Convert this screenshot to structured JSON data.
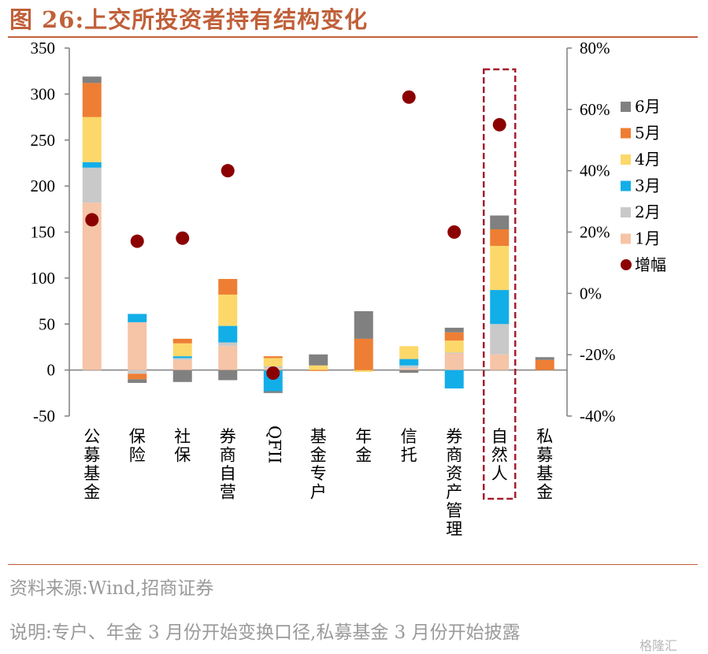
{
  "title": "图 26:上交所投资者持有结构变化",
  "source": "资料来源:Wind,招商证券",
  "note": "说明:专户、年金 3 月份开始变换口径,私募基金 3 月份开始披露",
  "watermark": "格隆汇",
  "highlight_color": "#a31f2f",
  "chart_data": {
    "type": "bar",
    "stacked": true,
    "categories": [
      "公募基金",
      "保险",
      "社保",
      "券商自营",
      "QFII",
      "基金专户",
      "年金",
      "信托",
      "券商资产管理",
      "自然人",
      "私募基金"
    ],
    "ylim": [
      -50,
      350
    ],
    "yticks": [
      -50,
      0,
      50,
      100,
      150,
      200,
      250,
      300,
      350
    ],
    "y2lim": [
      -0.4,
      0.8
    ],
    "y2ticks": [
      -0.4,
      -0.2,
      0,
      0.2,
      0.4,
      0.6,
      0.8
    ],
    "y2tick_labels": [
      "-40%",
      "-20%",
      "0%",
      "20%",
      "40%",
      "60%",
      "80%"
    ],
    "series": [
      {
        "name": "1月",
        "color": "#f6c4a6",
        "values": [
          182,
          52,
          11,
          26,
          2,
          0,
          0,
          2,
          18,
          17,
          0
        ]
      },
      {
        "name": "2月",
        "color": "#c9c9c9",
        "values": [
          38,
          -4,
          2,
          4,
          2,
          0,
          0,
          3,
          1,
          33,
          0
        ]
      },
      {
        "name": "3月",
        "color": "#12aee8",
        "values": [
          6,
          9,
          2,
          18,
          -23,
          0,
          0,
          7,
          -20,
          37,
          0
        ]
      },
      {
        "name": "4月",
        "color": "#fcd86a",
        "values": [
          49,
          0,
          14,
          34,
          9,
          5,
          -2,
          14,
          13,
          48,
          0
        ]
      },
      {
        "name": "5月",
        "color": "#ee7e33",
        "values": [
          37,
          -6,
          5,
          17,
          2,
          -1,
          34,
          0,
          9,
          18,
          11
        ]
      },
      {
        "name": "6月",
        "color": "#808080",
        "values": [
          7,
          -4,
          -13,
          -11,
          -2,
          12,
          30,
          -3,
          5,
          15,
          3
        ]
      }
    ],
    "rate_series": {
      "name": "增幅",
      "color": "#8b0000",
      "values": [
        0.24,
        0.17,
        0.18,
        0.4,
        -0.26,
        null,
        null,
        0.64,
        0.2,
        0.55,
        null
      ]
    },
    "highlight_category": "自然人"
  }
}
